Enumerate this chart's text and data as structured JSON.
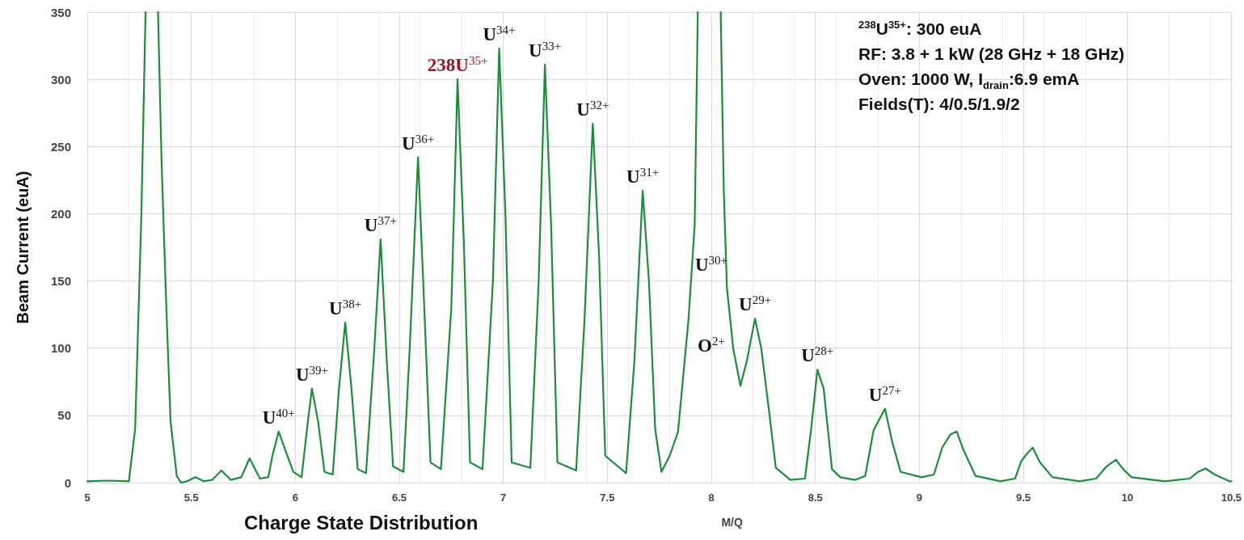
{
  "chart_data": {
    "type": "line",
    "title": "Charge State Distribution",
    "xlabel": "M/Q",
    "ylabel": "Beam Current (euA)",
    "x": [
      5.0,
      5.1,
      5.2,
      5.23,
      5.26,
      5.28,
      5.31,
      5.34,
      5.357,
      5.38,
      5.4,
      5.43,
      5.45,
      5.48,
      5.52,
      5.56,
      5.6,
      5.645,
      5.69,
      5.74,
      5.78,
      5.83,
      5.87,
      5.89,
      5.92,
      5.95,
      5.99,
      6.03,
      6.06,
      6.08,
      6.11,
      6.14,
      6.18,
      6.21,
      6.24,
      6.27,
      6.3,
      6.34,
      6.38,
      6.41,
      6.44,
      6.47,
      6.52,
      6.55,
      6.59,
      6.62,
      6.65,
      6.7,
      6.75,
      6.78,
      6.81,
      6.84,
      6.9,
      6.95,
      6.98,
      7.01,
      7.04,
      7.13,
      7.17,
      7.2,
      7.23,
      7.26,
      7.35,
      7.39,
      7.43,
      7.46,
      7.49,
      7.59,
      7.63,
      7.67,
      7.7,
      7.73,
      7.76,
      7.8,
      7.84,
      7.89,
      7.92,
      7.935,
      7.99,
      8.045,
      8.06,
      8.075,
      8.105,
      8.14,
      8.17,
      8.21,
      8.24,
      8.28,
      8.31,
      8.38,
      8.45,
      8.48,
      8.51,
      8.54,
      8.58,
      8.62,
      8.69,
      8.74,
      8.78,
      8.835,
      8.87,
      8.91,
      9.01,
      9.07,
      9.11,
      9.15,
      9.18,
      9.21,
      9.27,
      9.39,
      9.46,
      9.49,
      9.52,
      9.545,
      9.58,
      9.64,
      9.77,
      9.85,
      9.9,
      9.945,
      9.98,
      10.02,
      10.18,
      10.3,
      10.34,
      10.375,
      10.42,
      10.49,
      10.5
    ],
    "series": [
      {
        "color": "#1f8c3b",
        "values": [
          1,
          1.5,
          1,
          40,
          200,
          350,
          null,
          350,
          239,
          130,
          46,
          5,
          0,
          1,
          4,
          1,
          2,
          9,
          2,
          4,
          18,
          3,
          4,
          20,
          38,
          25,
          8,
          4,
          45,
          70,
          45,
          8,
          6,
          70,
          119,
          70,
          10,
          7,
          100,
          181,
          90,
          12,
          8,
          100,
          242,
          130,
          15,
          10,
          130,
          300,
          180,
          15,
          10,
          150,
          323,
          200,
          15,
          11,
          150,
          311,
          190,
          15,
          9,
          120,
          267,
          170,
          20,
          7,
          90,
          217,
          150,
          40,
          8,
          20,
          38,
          121,
          192,
          350,
          null,
          350,
          216,
          145,
          100,
          72,
          90,
          122,
          100,
          50,
          11,
          2,
          3,
          40,
          84,
          70,
          10,
          4,
          2,
          5,
          39,
          55,
          30,
          8,
          4,
          6,
          26,
          36,
          38,
          25,
          5,
          1,
          3,
          16,
          22,
          26,
          15,
          4,
          1,
          3,
          12,
          17,
          10,
          4,
          1,
          3,
          8,
          10.5,
          6,
          1,
          1
        ]
      }
    ],
    "xlim": [
      5,
      10.5
    ],
    "xticks": [
      5,
      5.5,
      6,
      6.5,
      7,
      7.5,
      8,
      8.5,
      9,
      9.5,
      10,
      10.5
    ],
    "ylim": [
      0,
      350
    ],
    "yticks": [
      0,
      50,
      100,
      150,
      200,
      250,
      300,
      350
    ],
    "grid": true,
    "marker": "none",
    "line_style": "solid",
    "annotations": [
      "$^{238}$U$^{35+}$: 300 euA",
      "RF: 3.8 + 1 kW (28 GHz + 18 GHz)",
      "Oven: 1000 W,  I$_{drain}$:6.9 emA",
      "Fields(T): 4/0.5/1.9/2",
      {
        "text": "U$^{40+}$",
        "x": 5.92,
        "y": 38
      },
      {
        "text": "U$^{39+}$",
        "x": 6.08,
        "y": 70
      },
      {
        "text": "U$^{38+}$",
        "x": 6.24,
        "y": 119
      },
      {
        "text": "U$^{37+}$",
        "x": 6.41,
        "y": 181
      },
      {
        "text": "U$^{36+}$",
        "x": 6.59,
        "y": 242
      },
      {
        "text": "238U$^{35+}$",
        "x": 6.78,
        "y": 300
      },
      {
        "text": "U$^{34+}$",
        "x": 6.98,
        "y": 323
      },
      {
        "text": "U$^{33+}$",
        "x": 7.2,
        "y": 311
      },
      {
        "text": "U$^{32+}$",
        "x": 7.43,
        "y": 267
      },
      {
        "text": "U$^{31+}$",
        "x": 7.67,
        "y": 217
      },
      "U$^{30+}$",
      "O$^{2+}$",
      {
        "text": "U$^{29+}$",
        "x": 8.21,
        "y": 122
      },
      {
        "text": "U$^{28+}$",
        "x": 8.51,
        "y": 84
      },
      {
        "text": "U$^{27+}$",
        "x": 8.835,
        "y": 55
      }
    ]
  }
}
